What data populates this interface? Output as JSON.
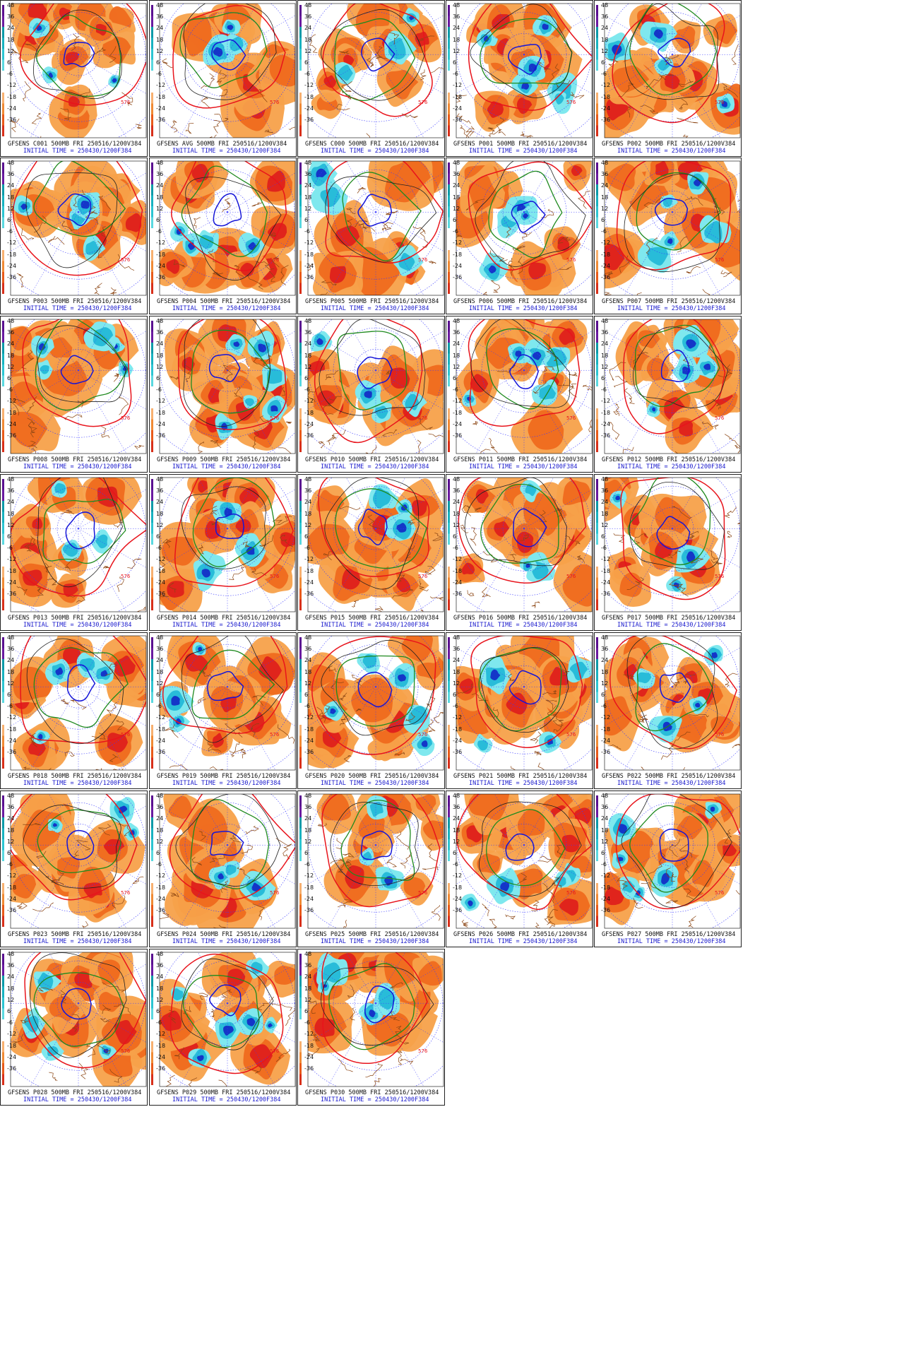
{
  "colors": {
    "positive_light": "#f7a14a",
    "positive_mid": "#ef6a1d",
    "positive_strong": "#e0241c",
    "negative_light": "#7fe8ee",
    "negative_mid": "#28bcd9",
    "negative_strong": "#1436c8",
    "contour_red": "#e8141c",
    "contour_green": "#1f8a1f",
    "contour_blue": "#1515d8",
    "coastline": "#8b4513",
    "latlon_grid": "#3a3aff",
    "caption_black": "#111111",
    "caption_blue": "#1a1acd"
  },
  "scale_labels": [
    "48",
    "36",
    "24",
    "18",
    "12",
    "6",
    "-6",
    "-12",
    "-18",
    "-24",
    "-36"
  ],
  "contour_label": "576",
  "panels": [
    {
      "member": "C001",
      "line1": "GFSENS C001 500MB FRI 250516/1200V384",
      "line2": "INITIAL TIME = 250430/1200F384"
    },
    {
      "member": "AVG",
      "line1": "GFSENS AVG 500MB FRI 250516/1200V384",
      "line2": "INITIAL TIME = 250430/1200F384"
    },
    {
      "member": "C000",
      "line1": "GFSENS C000 500MB FRI 250516/1200V384",
      "line2": "INITIAL TIME = 250430/1200F384"
    },
    {
      "member": "P001",
      "line1": "GFSENS P001 500MB FRI 250516/1200V384",
      "line2": "INITIAL TIME = 250430/1200F384"
    },
    {
      "member": "P002",
      "line1": "GFSENS P002 500MB FRI 250516/1200V384",
      "line2": "INITIAL TIME = 250430/1200F384"
    },
    {
      "member": "P003",
      "line1": "GFSENS P003 500MB FRI 250516/1200V384",
      "line2": "INITIAL TIME = 250430/1200F384"
    },
    {
      "member": "P004",
      "line1": "GFSENS P004 500MB FRI 250516/1200V384",
      "line2": "INITIAL TIME = 250430/1200F384"
    },
    {
      "member": "P005",
      "line1": "GFSENS P005 500MB FRI 250516/1200V384",
      "line2": "INITIAL TIME = 250430/1200F384"
    },
    {
      "member": "P006",
      "line1": "GFSENS P006 500MB FRI 250516/1200V384",
      "line2": "INITIAL TIME = 250430/1200F384"
    },
    {
      "member": "P007",
      "line1": "GFSENS P007 500MB FRI 250516/1200V384",
      "line2": "INITIAL TIME = 250430/1200F384"
    },
    {
      "member": "P008",
      "line1": "GFSENS P008 500MB FRI 250516/1200V384",
      "line2": "INITIAL TIME = 250430/1200F384"
    },
    {
      "member": "P009",
      "line1": "GFSENS P009 500MB FRI 250516/1200V384",
      "line2": "INITIAL TIME = 250430/1200F384"
    },
    {
      "member": "P010",
      "line1": "GFSENS P010 500MB FRI 250516/1200V384",
      "line2": "INITIAL TIME = 250430/1200F384"
    },
    {
      "member": "P011",
      "line1": "GFSENS P011 500MB FRI 250516/1200V384",
      "line2": "INITIAL TIME = 250430/1200F384"
    },
    {
      "member": "P012",
      "line1": "GFSENS P012 500MB FRI 250516/1200V384",
      "line2": "INITIAL TIME = 250430/1200F384"
    },
    {
      "member": "P013",
      "line1": "GFSENS P013 500MB FRI 250516/1200V384",
      "line2": "INITIAL TIME = 250430/1200F384"
    },
    {
      "member": "P014",
      "line1": "GFSENS P014 500MB FRI 250516/1200V384",
      "line2": "INITIAL TIME = 250430/1200F384"
    },
    {
      "member": "P015",
      "line1": "GFSENS P015 500MB FRI 250516/1200V384",
      "line2": "INITIAL TIME = 250430/1200F384"
    },
    {
      "member": "P016",
      "line1": "GFSENS P016 500MB FRI 250516/1200V384",
      "line2": "INITIAL TIME = 250430/1200F384"
    },
    {
      "member": "P017",
      "line1": "GFSENS P017 500MB FRI 250516/1200V384",
      "line2": "INITIAL TIME = 250430/1200F384"
    },
    {
      "member": "P018",
      "line1": "GFSENS P018 500MB FRI 250516/1200V384",
      "line2": "INITIAL TIME = 250430/1200F384"
    },
    {
      "member": "P019",
      "line1": "GFSENS P019 500MB FRI 250516/1200V384",
      "line2": "INITIAL TIME = 250430/1200F384"
    },
    {
      "member": "P020",
      "line1": "GFSENS P020 500MB FRI 250516/1200V384",
      "line2": "INITIAL TIME = 250430/1200F384"
    },
    {
      "member": "P021",
      "line1": "GFSENS P021 500MB FRI 250516/1200V384",
      "line2": "INITIAL TIME = 250430/1200F384"
    },
    {
      "member": "P022",
      "line1": "GFSENS P022 500MB FRI 250516/1200V384",
      "line2": "INITIAL TIME = 250430/1200F384"
    },
    {
      "member": "P023",
      "line1": "GFSENS P023 500MB FRI 250516/1200V384",
      "line2": "INITIAL TIME = 250430/1200F384"
    },
    {
      "member": "P024",
      "line1": "GFSENS P024 500MB FRI 250516/1200V384",
      "line2": "INITIAL TIME = 250430/1200F384"
    },
    {
      "member": "P025",
      "line1": "GFSENS P025 500MB FRI 250516/1200V384",
      "line2": "INITIAL TIME = 250430/1200F384"
    },
    {
      "member": "P026",
      "line1": "GFSENS P026 500MB FRI 250516/1200V384",
      "line2": "INITIAL TIME = 250430/1200F384"
    },
    {
      "member": "P027",
      "line1": "GFSENS P027 500MB FRI 250516/1200V384",
      "line2": "INITIAL TIME = 250430/1200F384"
    },
    {
      "member": "P028",
      "line1": "GFSENS P028 500MB FRI 250516/1200V384",
      "line2": "INITIAL TIME = 250430/1200F384"
    },
    {
      "member": "P029",
      "line1": "GFSENS P029 500MB FRI 250516/1200V384",
      "line2": "INITIAL TIME = 250430/1200F384"
    },
    {
      "member": "P030",
      "line1": "GFSENS P030 500MB FRI 250516/1200V384",
      "line2": "INITIAL TIME = 250430/1200F384"
    }
  ]
}
